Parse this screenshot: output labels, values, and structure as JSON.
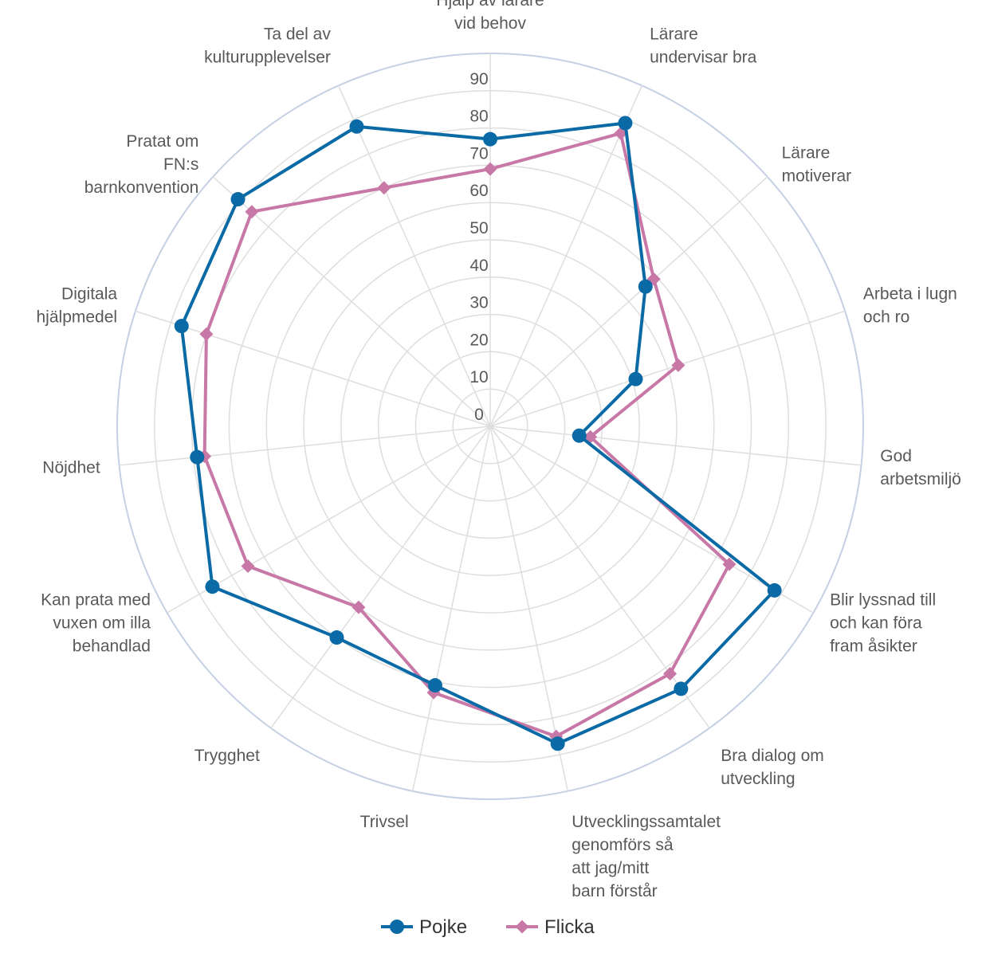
{
  "chart_data": {
    "type": "radar",
    "categories": [
      [
        "Hjälp av lärare",
        "vid behov"
      ],
      [
        "Lärare",
        "undervisar bra"
      ],
      [
        "Lärare",
        "motiverar"
      ],
      [
        "Arbeta i lugn",
        "och ro"
      ],
      [
        "God",
        "arbetsmiljö"
      ],
      [
        "Blir lyssnad till",
        "och kan föra",
        "fram åsikter"
      ],
      [
        "Bra dialog om",
        "utveckling"
      ],
      [
        "Utvecklingssamtalet",
        "genomförs så",
        "att jag/mitt",
        "barn förstår"
      ],
      [
        "Trivsel"
      ],
      [
        "Trygghet"
      ],
      [
        "Kan prata med",
        "vuxen om illa",
        "behandlad"
      ],
      [
        "Nöjdhet"
      ],
      [
        "Digitala",
        "hjälpmedel"
      ],
      [
        "Pratat om",
        "FN:s",
        "barnkonvention"
      ],
      [
        "Ta del av",
        "kulturupplevelser"
      ]
    ],
    "ticks": [
      "0",
      "10",
      "20",
      "30",
      "40",
      "50",
      "60",
      "70",
      "80",
      "90"
    ],
    "rmax": 100,
    "series": [
      {
        "name": "Pojke",
        "color": "#0a6aa6",
        "marker": "circle",
        "values": [
          77,
          89,
          56,
          41,
          24,
          88,
          87,
          87,
          71,
          70,
          86,
          79,
          87,
          91,
          88
        ]
      },
      {
        "name": "Flicka",
        "color": "#c878a6",
        "marker": "diamond",
        "values": [
          69,
          86,
          59,
          53,
          27,
          74,
          82,
          85,
          73,
          60,
          75,
          77,
          80,
          86,
          70
        ]
      }
    ],
    "legend": "bottom"
  }
}
